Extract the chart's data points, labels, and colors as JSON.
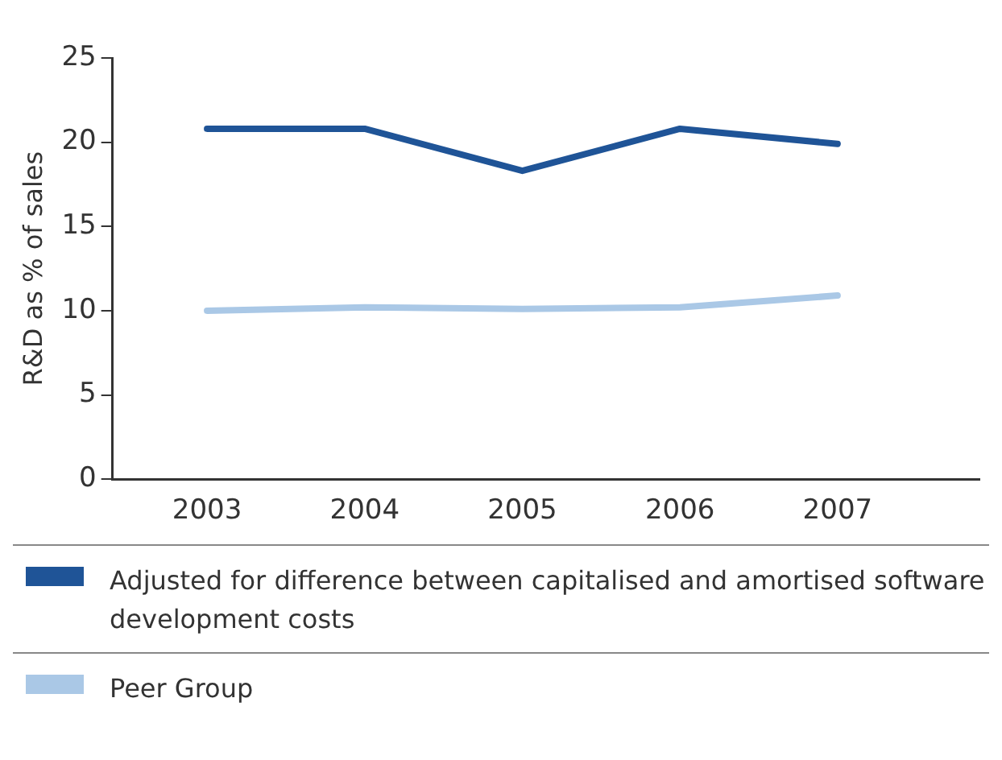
{
  "chart_data": {
    "type": "line",
    "ylabel": "R&D as % of sales",
    "x": [
      2003,
      2004,
      2005,
      2006,
      2007
    ],
    "xlim": [
      2002.4,
      2007.9
    ],
    "xticks": [
      2003,
      2004,
      2005,
      2006,
      2007
    ],
    "ylim": [
      0,
      25
    ],
    "yticks": [
      0,
      5,
      10,
      15,
      20,
      25
    ],
    "grid": false,
    "legend": "bottom",
    "marker": "none",
    "line_style": "solid",
    "series": [
      {
        "name": "Adjusted for difference between capitalised and amortised software development costs",
        "color": "#1f5497",
        "values": [
          20.8,
          20.8,
          18.3,
          20.8,
          19.9
        ]
      },
      {
        "name": "Peer Group",
        "color": "#aac8e6",
        "values": [
          10.0,
          10.2,
          10.1,
          10.2,
          10.9
        ]
      }
    ]
  }
}
